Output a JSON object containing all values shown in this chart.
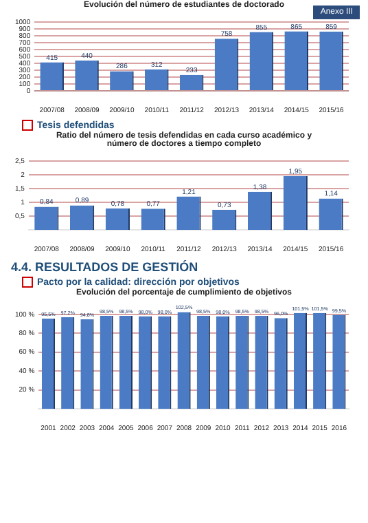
{
  "chart_data": [
    {
      "type": "bar",
      "title": "Evolución del número de estudiantes de doctorado",
      "annotations": [
        "Anexo III"
      ],
      "categories": [
        "2007/08",
        "2008/09",
        "2009/10",
        "2010/11",
        "2011/12",
        "2012/13",
        "2013/14",
        "2014/15",
        "2015/16"
      ],
      "values": [
        415,
        440,
        286,
        312,
        233,
        758,
        855,
        865,
        859
      ],
      "color": "#4a7bc4",
      "ylim": [
        0,
        1000
      ],
      "yticks": [
        0,
        100,
        200,
        300,
        400,
        500,
        600,
        700,
        800,
        900,
        1000
      ],
      "grid": "y",
      "data_labels": true
    },
    {
      "type": "bar",
      "subtitle": "Tesis defendidas",
      "title": "Ratio del número de tesis defendidas en cada curso académico y número de doctores a tiempo completo",
      "categories": [
        "2007/08",
        "2008/09",
        "2009/10",
        "2010/11",
        "2011/12",
        "2012/13",
        "2013/14",
        "2014/15",
        "2015/16"
      ],
      "values": [
        0.84,
        0.89,
        0.78,
        0.77,
        1.21,
        0.73,
        1.38,
        1.95,
        1.14
      ],
      "value_labels": [
        "0,84",
        "0,89",
        "0,78",
        "0,77",
        "1,21",
        "0,73",
        "1,38",
        "1,95",
        "1,14"
      ],
      "color": "#4a7bc4",
      "ylim": [
        0,
        2.5
      ],
      "yticks": [
        {
          "value": 0.5,
          "label": "0,5"
        },
        1,
        {
          "value": 1.5,
          "label": "1,5"
        },
        2,
        {
          "value": 2.5,
          "label": "2,5"
        }
      ],
      "grid": "y"
    },
    {
      "type": "bar",
      "annotations": [
        "4.4. RESULTADOS DE GESTIÓN"
      ],
      "subtitle": "Pacto por la calidad: dirección por objetivos",
      "title": "Evolución del porcentaje de cumplimiento de objetivos",
      "categories": [
        "2001",
        "2002",
        "2003",
        "2004",
        "2005",
        "2006",
        "2007",
        "2008",
        "2009",
        "2010",
        "2011",
        "2012",
        "2013",
        "2014",
        "2015",
        "2016"
      ],
      "values": [
        95.5,
        97.2,
        94.8,
        98.5,
        98.5,
        98.0,
        98.0,
        102.5,
        98.5,
        98.0,
        98.5,
        98.5,
        96.0,
        101.5,
        101.5,
        99.5
      ],
      "value_labels": [
        "95,5%",
        "97,2%",
        "94,8%",
        "98,5%",
        "98,5%",
        "98,0%",
        "98,0%",
        "102,5%",
        "98,5%",
        "98,0%",
        "98,5%",
        "98,5%",
        "96,0%",
        "101,5%",
        "101,5%",
        "99,5%"
      ],
      "color": "#4a7bc4",
      "ylim": [
        0,
        105
      ],
      "yticks": [
        {
          "value": 20,
          "label": "20 %"
        },
        {
          "value": 40,
          "label": "40 %"
        },
        {
          "value": 60,
          "label": "60 %"
        },
        {
          "value": 80,
          "label": "80 %"
        },
        {
          "value": 100,
          "label": "100 %"
        }
      ],
      "grid": "y"
    }
  ]
}
